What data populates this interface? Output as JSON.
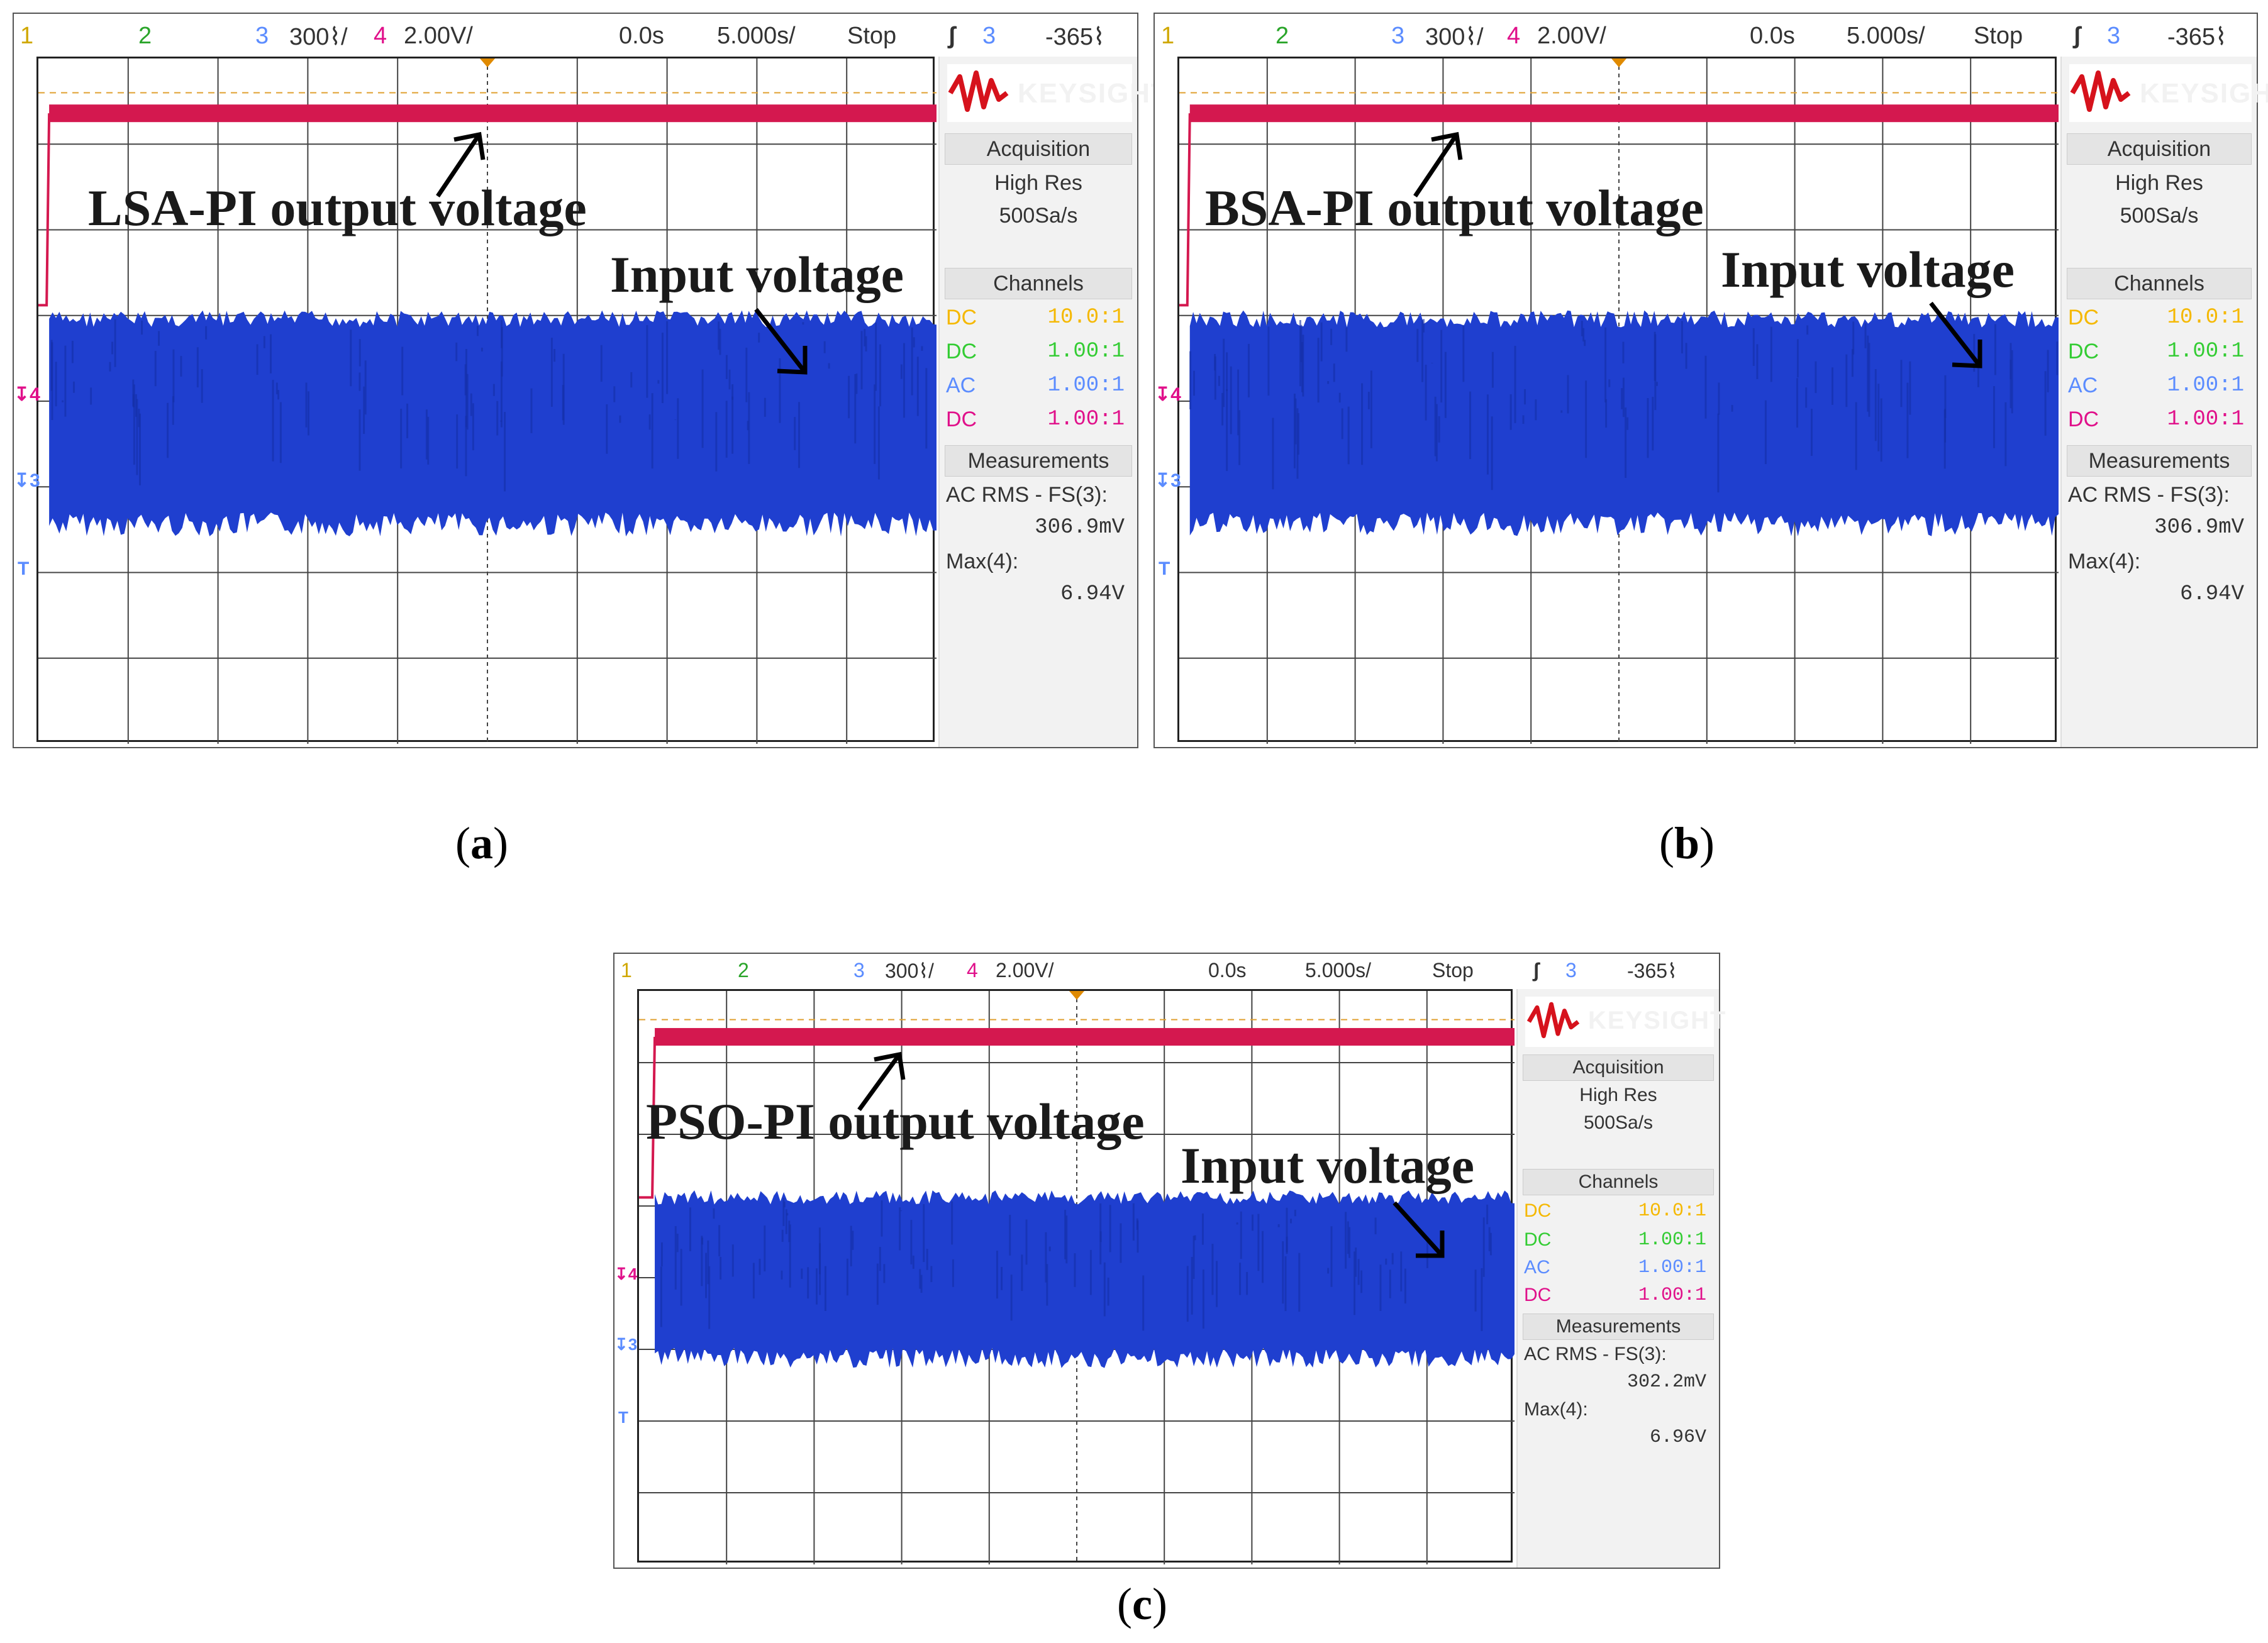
{
  "top_bar": {
    "ch1": "1",
    "ch2": "2",
    "ch3": "3",
    "ch3_scale": "300⌇/",
    "ch4": "4",
    "ch4_scale": "2.00V/",
    "time_offset": "0.0s",
    "timebase": "5.000s/",
    "run_state": "Stop",
    "trigger_icon": "trigger-edge-icon",
    "trigger_channel": "3",
    "trigger_level": "-365⌇"
  },
  "sidebar": {
    "brand": "KEYSIGHT",
    "acquisition_header": "Acquisition",
    "acquisition_mode": "High Res",
    "sample_rate": "500Sa/s",
    "channels_header": "Channels",
    "channels": [
      {
        "coupling": "DC",
        "probe": "10.0:1",
        "color": "#f5b800"
      },
      {
        "coupling": "DC",
        "probe": "1.00:1",
        "color": "#33cc33"
      },
      {
        "coupling": "AC",
        "probe": "1.00:1",
        "color": "#5b8cff"
      },
      {
        "coupling": "DC",
        "probe": "1.00:1",
        "color": "#e0108a"
      }
    ],
    "measurements_header": "Measurements",
    "meas1_label": "AC RMS - FS(3):",
    "meas2_label": "Max(4):"
  },
  "panels": [
    {
      "id": "a",
      "caption": "a",
      "output_label": "LSA-PI output voltage",
      "input_label": "Input voltage",
      "ac_rms": "306.9mV",
      "max": "6.94V"
    },
    {
      "id": "b",
      "caption": "b",
      "output_label": "BSA-PI output voltage",
      "input_label": "Input voltage",
      "ac_rms": "306.9mV",
      "max": "6.94V"
    },
    {
      "id": "c",
      "caption": "c",
      "output_label": "PSO-PI output voltage",
      "input_label": "Input voltage",
      "ac_rms": "302.2mV",
      "max": "6.96V"
    }
  ],
  "markers": {
    "ch4": "4",
    "ch3": "3",
    "trigger": "T"
  },
  "colors": {
    "output_trace": "#d4184f",
    "input_trace": "#1f3fcf",
    "trigger_marker": "#e08a00"
  }
}
